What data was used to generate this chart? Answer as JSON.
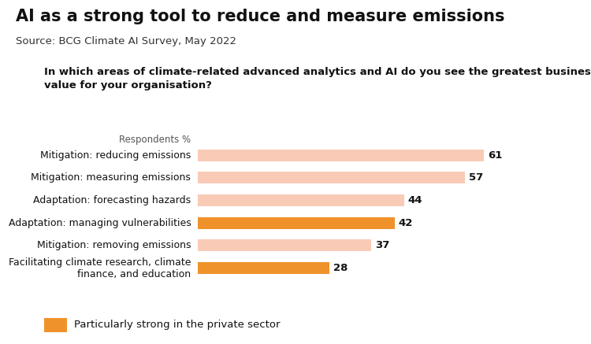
{
  "title": "AI as a strong tool to reduce and measure emissions",
  "source": "Source: BCG Climate AI Survey, May 2022",
  "question_line1": "In which areas of climate-related advanced analytics and AI do you see the greatest business",
  "question_line2": "value for your organisation?",
  "respondents_label": "Respondents %",
  "categories": [
    "Mitigation: reducing emissions",
    "Mitigation: measuring emissions",
    "Adaptation: forecasting hazards",
    "Adaptation: managing vulnerabilities",
    "Mitigation: removing emissions",
    "Facilitating climate research, climate\nfinance, and education"
  ],
  "values": [
    61,
    57,
    44,
    42,
    37,
    28
  ],
  "bar_colors": [
    "#f9cbb7",
    "#f9cbb7",
    "#f9cbb7",
    "#f0922b",
    "#f9cbb7",
    "#f0922b"
  ],
  "light_color": "#f9cbb7",
  "orange_color": "#f0922b",
  "legend_label": "Particularly strong in the private sector",
  "background_color": "#ffffff",
  "title_fontsize": 15,
  "source_fontsize": 9.5,
  "question_fontsize": 9.5,
  "bar_label_fontsize": 9.5,
  "category_fontsize": 9,
  "respondents_fontsize": 8.5,
  "legend_fontsize": 9.5,
  "xlim": [
    0,
    75
  ]
}
